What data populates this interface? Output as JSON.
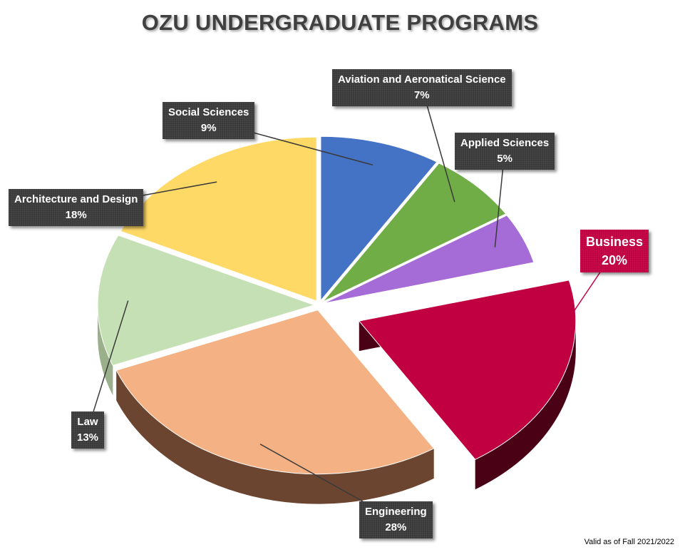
{
  "chart_data": {
    "type": "pie",
    "title": "OZU UNDERGRADUATE PROGRAMS",
    "note": "Valid as of Fall  2021/2022",
    "slices": [
      {
        "label": "Social Sciences",
        "pct_label": "9%",
        "value": 9,
        "color": "#4472C4",
        "side": "#2A4A85"
      },
      {
        "label": "Aviation and Aeronatical Science",
        "pct_label": "7%",
        "value": 7,
        "color": "#70AD47",
        "side": "#4C7A2F"
      },
      {
        "label": "Applied Sciences",
        "pct_label": "5%",
        "value": 5,
        "color": "#A56BD6",
        "side": "#7A4AA8"
      },
      {
        "label": "Business",
        "pct_label": "20%",
        "value": 20,
        "color": "#C00040",
        "side": "#4A0015",
        "exploded": true
      },
      {
        "label": "Engineering",
        "pct_label": "28%",
        "value": 28,
        "color": "#F4B183",
        "side": "#6B4530"
      },
      {
        "label": "Law",
        "pct_label": "13%",
        "value": 13,
        "color": "#C5E0B4",
        "side": "#9AB08A"
      },
      {
        "label": "Architecture and Design",
        "pct_label": "18%",
        "value": 18,
        "color": "#FFD966",
        "side": "#A08030"
      }
    ],
    "label_box_color": "#3A3A3A",
    "highlight_label_color": "#C00040"
  }
}
